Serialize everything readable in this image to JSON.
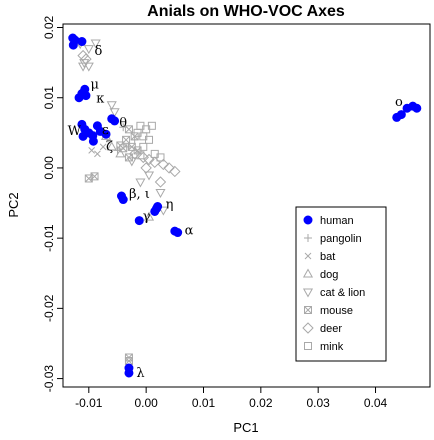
{
  "chart_data": {
    "type": "scatter",
    "title": "Anials on WHO-VOC Axes",
    "xlabel": "PC1",
    "ylabel": "PC2",
    "xlim": [
      -0.0145,
      0.0495
    ],
    "ylim": [
      -0.0312,
      0.0205
    ],
    "xticks": [
      -0.01,
      0.0,
      0.01,
      0.02,
      0.03,
      0.04
    ],
    "xtick_labels": [
      "-0.01",
      "0.00",
      "0.01",
      "0.02",
      "0.03",
      "0.04"
    ],
    "yticks": [
      -0.03,
      -0.02,
      -0.01,
      0.0,
      0.01,
      0.02
    ],
    "ytick_labels": [
      "-0.03",
      "-0.02",
      "-0.01",
      "0.00",
      "0.01",
      "0.02"
    ],
    "legend_position": "right",
    "colors": {
      "human": "#0000ff",
      "animal": "#a9a9a9"
    },
    "series": [
      {
        "name": "human",
        "marker": "filled-circle",
        "points": [
          [
            -0.0128,
            0.0185
          ],
          [
            -0.0124,
            0.0182
          ],
          [
            -0.0127,
            0.0175
          ],
          [
            -0.0112,
            0.018
          ],
          [
            -0.0107,
            0.0112
          ],
          [
            -0.0112,
            0.0106
          ],
          [
            -0.0117,
            0.01
          ],
          [
            -0.0105,
            0.0103
          ],
          [
            -0.0112,
            0.0062
          ],
          [
            -0.0107,
            0.0055
          ],
          [
            -0.01,
            0.005
          ],
          [
            -0.0093,
            0.0046
          ],
          [
            -0.0085,
            0.006
          ],
          [
            -0.008,
            0.0052
          ],
          [
            -0.007,
            0.0048
          ],
          [
            -0.006,
            0.007
          ],
          [
            -0.0055,
            0.0067
          ],
          [
            -0.0092,
            0.0038
          ],
          [
            -0.011,
            0.0045
          ],
          [
            -0.0043,
            -0.004
          ],
          [
            -0.004,
            -0.0045
          ],
          [
            0.0018,
            -0.0058
          ],
          [
            0.0015,
            -0.0062
          ],
          [
            0.002,
            -0.0055
          ],
          [
            -0.0012,
            -0.0075
          ],
          [
            0.005,
            -0.009
          ],
          [
            0.0055,
            -0.0092
          ],
          [
            -0.003,
            -0.0285
          ],
          [
            -0.003,
            -0.0292
          ],
          [
            0.0437,
            0.0072
          ],
          [
            0.0445,
            0.0076
          ],
          [
            0.0455,
            0.0085
          ],
          [
            0.0465,
            0.0088
          ],
          [
            0.0472,
            0.0085
          ]
        ]
      },
      {
        "name": "pangolin",
        "marker": "plus",
        "points": [
          [
            -0.004,
            0.0058
          ],
          [
            -0.003,
            0.003
          ],
          [
            -0.005,
            0.0025
          ],
          [
            -0.002,
            0.004
          ]
        ]
      },
      {
        "name": "bat",
        "marker": "cross",
        "points": [
          [
            -0.0085,
            0.002
          ],
          [
            -0.0075,
            0.003
          ],
          [
            -0.0095,
            0.0025
          ]
        ]
      },
      {
        "name": "dog",
        "marker": "triangle-up",
        "points": [
          [
            -0.006,
            0.003
          ],
          [
            -0.0045,
            0.002
          ],
          [
            -0.007,
            0.0045
          ],
          [
            0.0005,
            -0.007
          ]
        ]
      },
      {
        "name": "cat & lion",
        "marker": "triangle-down",
        "points": [
          [
            -0.0115,
            0.0177
          ],
          [
            -0.01,
            0.017
          ],
          [
            -0.0088,
            0.0178
          ],
          [
            -0.0108,
            0.015
          ],
          [
            -0.011,
            0.0145
          ],
          [
            -0.01,
            0.0145
          ],
          [
            -0.006,
            0.009
          ],
          [
            -0.0055,
            0.008
          ],
          [
            -0.0025,
            0.001
          ],
          [
            0.0005,
            -0.001
          ],
          [
            0.0025,
            -0.0035
          ],
          [
            0.003,
            -0.006
          ],
          [
            -0.001,
            -0.002
          ]
        ]
      },
      {
        "name": "mouse",
        "marker": "boxed-x",
        "points": [
          [
            -0.003,
            0.0055
          ],
          [
            -0.002,
            0.0045
          ],
          [
            -0.0035,
            0.004
          ],
          [
            -0.0025,
            0.003
          ],
          [
            -0.004,
            0.0028
          ],
          [
            -0.0015,
            0.0025
          ],
          [
            -0.003,
            0.0015
          ],
          [
            -0.0045,
            0.0032
          ],
          [
            -0.01,
            -0.0015
          ],
          [
            -0.009,
            -0.0012
          ],
          [
            -0.003,
            -0.027
          ],
          [
            -0.003,
            -0.0275
          ]
        ]
      },
      {
        "name": "deer",
        "marker": "diamond",
        "points": [
          [
            -0.011,
            0.016
          ],
          [
            -0.0105,
            0.0155
          ],
          [
            -0.002,
            0.002
          ],
          [
            -0.0005,
            0.0015
          ],
          [
            0.0005,
            0.0012
          ],
          [
            0.0015,
            0.0008
          ],
          [
            0.003,
            0.0005
          ],
          [
            0.004,
            0.0
          ],
          [
            0.005,
            -0.0005
          ],
          [
            0.0,
            0.0
          ],
          [
            0.0025,
            -0.002
          ]
        ]
      },
      {
        "name": "mink",
        "marker": "square",
        "points": [
          [
            -0.001,
            0.006
          ],
          [
            0.0,
            0.0055
          ],
          [
            0.001,
            0.006
          ],
          [
            -0.0005,
            0.0045
          ],
          [
            0.0005,
            0.004
          ],
          [
            -0.0015,
            0.005
          ],
          [
            -0.0005,
            0.003
          ],
          [
            0.0015,
            0.002
          ],
          [
            0.0025,
            0.0015
          ],
          [
            -0.001,
            0.0018
          ]
        ]
      }
    ],
    "annotations": [
      {
        "text": "δ",
        "x": -0.009,
        "y": 0.0161
      },
      {
        "text": "μ",
        "x": -0.0097,
        "y": 0.0113
      },
      {
        "text": "κ",
        "x": -0.0087,
        "y": 0.0093
      },
      {
        "text": "ο",
        "x": 0.0434,
        "y": 0.0088
      },
      {
        "text": "W",
        "x": -0.0137,
        "y": 0.0047
      },
      {
        "text": "ε",
        "x": -0.0077,
        "y": 0.0048
      },
      {
        "text": "θ",
        "x": -0.0047,
        "y": 0.0058
      },
      {
        "text": "ζ",
        "x": -0.007,
        "y": 0.0025
      },
      {
        "text": "β, ι",
        "x": -0.003,
        "y": -0.0043
      },
      {
        "text": "η",
        "x": 0.0034,
        "y": -0.0058
      },
      {
        "text": "γ",
        "x": -0.0006,
        "y": -0.0075
      },
      {
        "text": "α",
        "x": 0.0067,
        "y": -0.0095
      },
      {
        "text": "λ",
        "x": -0.0017,
        "y": -0.0298
      }
    ]
  }
}
